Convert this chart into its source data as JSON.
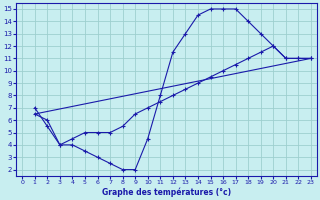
{
  "title": "Graphe des températures (°c)",
  "bg_color": "#c8eef0",
  "grid_color": "#9ecfcf",
  "line_color": "#1a1aaa",
  "xlim": [
    -0.5,
    23.5
  ],
  "ylim": [
    1.5,
    15.5
  ],
  "xticks": [
    0,
    1,
    2,
    3,
    4,
    5,
    6,
    7,
    8,
    9,
    10,
    11,
    12,
    13,
    14,
    15,
    16,
    17,
    18,
    19,
    20,
    21,
    22,
    23
  ],
  "yticks": [
    2,
    3,
    4,
    5,
    6,
    7,
    8,
    9,
    10,
    11,
    12,
    13,
    14,
    15
  ],
  "line1_x": [
    1,
    2,
    3,
    4,
    5,
    6,
    7,
    8,
    9,
    10,
    11,
    12,
    13,
    14,
    15,
    16,
    17,
    18,
    19,
    20,
    21,
    22,
    23
  ],
  "line1_y": [
    7,
    5.5,
    4,
    4,
    3.5,
    3,
    2.5,
    2,
    2,
    4.5,
    8,
    11.5,
    13,
    14.5,
    15,
    15,
    15,
    14,
    13,
    12,
    11,
    11,
    11
  ],
  "line2_x": [
    1,
    2,
    3,
    4,
    5,
    6,
    7,
    8,
    9,
    10,
    11,
    12,
    13,
    14,
    15,
    16,
    17,
    18,
    19,
    20,
    21,
    22,
    23
  ],
  "line2_y": [
    6.5,
    6,
    4,
    4.5,
    5,
    5,
    5,
    5.5,
    6.5,
    7,
    7.5,
    8,
    8.5,
    9,
    9.5,
    10,
    10.5,
    11,
    11.5,
    12,
    11,
    11,
    11
  ],
  "line3_x": [
    1,
    23
  ],
  "line3_y": [
    6.5,
    11
  ]
}
